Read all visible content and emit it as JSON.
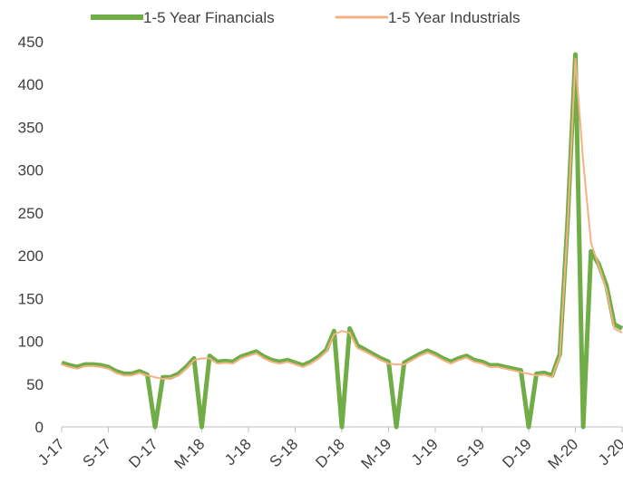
{
  "chart_data": {
    "type": "line",
    "categories": [
      "J-17",
      null,
      null,
      null,
      null,
      null,
      "S-17",
      null,
      null,
      null,
      null,
      null,
      "D-17",
      null,
      null,
      null,
      null,
      null,
      "M-18",
      null,
      null,
      null,
      null,
      null,
      "J-18",
      null,
      null,
      null,
      null,
      null,
      "S-18",
      null,
      null,
      null,
      null,
      null,
      "D-18",
      null,
      null,
      null,
      null,
      null,
      "M-19",
      null,
      null,
      null,
      null,
      null,
      "J-19",
      null,
      null,
      null,
      null,
      null,
      "S-19",
      null,
      null,
      null,
      null,
      null,
      "D-19",
      null,
      null,
      null,
      null,
      null,
      "M-20",
      null,
      null,
      null,
      null,
      null,
      "J-20"
    ],
    "series": [
      {
        "name": "1-5 Year Financials",
        "color": "#70ad47",
        "width": 5,
        "values": [
          75,
          72,
          70,
          73,
          73,
          72,
          70,
          65,
          62,
          62,
          65,
          61,
          0,
          58,
          58,
          62,
          70,
          80,
          0,
          83,
          76,
          77,
          76,
          82,
          85,
          88,
          82,
          78,
          76,
          78,
          75,
          72,
          76,
          82,
          90,
          112,
          0,
          115,
          95,
          90,
          85,
          80,
          76,
          0,
          75,
          80,
          85,
          89,
          85,
          80,
          76,
          80,
          83,
          78,
          76,
          72,
          72,
          70,
          68,
          66,
          0,
          62,
          63,
          60,
          85,
          240,
          435,
          0,
          205,
          190,
          165,
          120,
          115
        ]
      },
      {
        "name": "1-5 Year Industrials",
        "color": "#f4b183",
        "width": 2,
        "values": [
          73,
          70,
          68,
          71,
          71,
          70,
          68,
          63,
          60,
          60,
          63,
          60,
          58,
          56,
          57,
          60,
          68,
          78,
          80,
          80,
          74,
          75,
          74,
          80,
          83,
          86,
          80,
          76,
          74,
          76,
          73,
          70,
          74,
          80,
          88,
          108,
          112,
          110,
          92,
          88,
          83,
          78,
          74,
          73,
          73,
          78,
          83,
          87,
          83,
          78,
          74,
          78,
          81,
          76,
          74,
          70,
          70,
          68,
          66,
          64,
          62,
          60,
          61,
          58,
          82,
          235,
          430,
          310,
          215,
          188,
          160,
          115,
          110
        ]
      }
    ],
    "ylim": [
      0,
      450
    ],
    "yticks": [
      0,
      50,
      100,
      150,
      200,
      250,
      300,
      350,
      400,
      450
    ]
  }
}
